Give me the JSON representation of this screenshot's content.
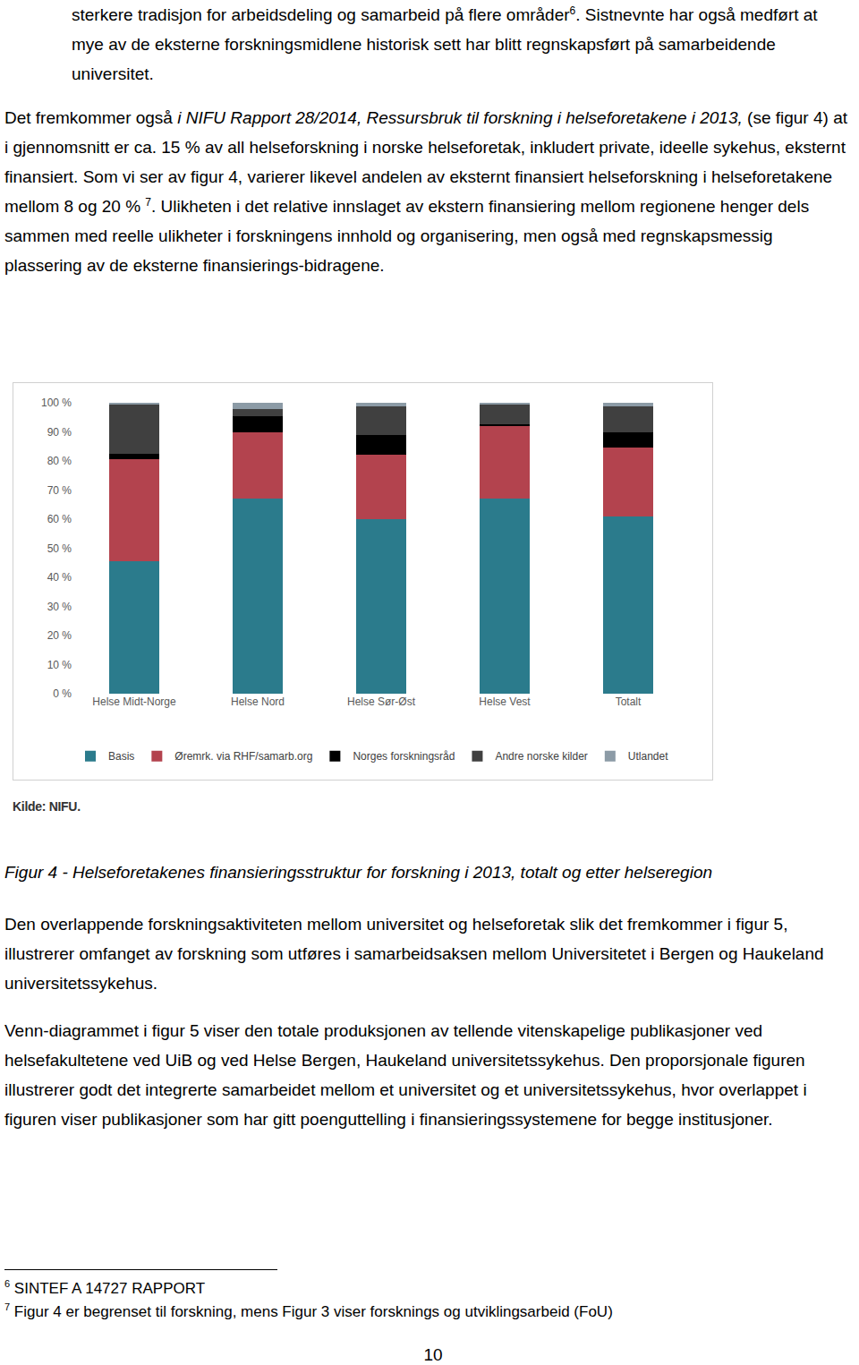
{
  "paragraphs": [
    [
      {
        "text": "sterkere tradisjon for arbeidsdeling og samarbeid på flere områder"
      },
      {
        "sup": "6"
      },
      {
        "text": ". Sistnevnte har også medført at mye av de eksterne forskningsmidlene historisk sett har blitt regnskapsført på samarbeidende universitet."
      }
    ],
    [
      {
        "text": "Det fremkommer også "
      },
      {
        "text": "i NIFU Rapport 28/2014, Ressursbruk til forskning i helseforetakene i 2013,",
        "italic": true
      },
      {
        "text": " (se figur 4) at i gjennomsnitt er ca. 15 % av all helseforskning i norske helseforetak, inkludert private, ideelle sykehus, eksternt finansiert. Som vi ser av figur 4, varierer likevel andelen av eksternt finansiert helseforskning i helseforetakene mellom 8 og 20 % "
      },
      {
        "sup": "7"
      },
      {
        "text": ". Ulikheten i det relative innslaget av ekstern finansiering mellom regionene henger dels sammen med reelle ulikheter i forskningens innhold og organisering, men også med regnskapsmessig plassering av de eksterne finansierings-bidragene."
      }
    ],
    [
      {
        "text": "Den overlappende forskningsaktiviteten mellom universitet og helseforetak slik det fremkommer i figur 5, illustrerer omfanget av forskning som utføres i samarbeidsaksen mellom Universitetet i Bergen og Haukeland universitetssykehus."
      }
    ],
    [
      {
        "text": "Venn-diagrammet i figur 5 viser den totale produksjonen av tellende vitenskapelige publikasjoner ved helsefakultetene ved UiB og ved Helse Bergen, Haukeland universitetssykehus. Den proporsjonale figuren illustrerer godt det integrerte samarbeidet mellom et universitet og et universitetssykehus, hvor overlappet i figuren viser publikasjoner som har gitt poenguttelling i finansieringssystemene for begge institusjoner."
      }
    ]
  ],
  "chart_data": {
    "type": "bar",
    "stacked": true,
    "grid": false,
    "legend": "bottom",
    "categories": [
      "Helse Midt-Norge",
      "Helse Nord",
      "Helse Sør-Øst",
      "Helse Vest",
      "Totalt"
    ],
    "series": [
      {
        "name": "Basis",
        "color": "#2b7b8c",
        "values": [
          45.5,
          67,
          60,
          67,
          61
        ]
      },
      {
        "name": "Øremrk. via RHF/samarb.org",
        "color": "#b3434e",
        "values": [
          35,
          23,
          22.3,
          25,
          23.5
        ]
      },
      {
        "name": "Norges forskningsråd",
        "color": "#000000",
        "values": [
          2,
          5.5,
          6.7,
          0.5,
          5.5
        ]
      },
      {
        "name": "Andre norske kilder",
        "color": "#404040",
        "values": [
          17,
          2.5,
          9.8,
          7,
          8.8
        ]
      },
      {
        "name": "Utlandet",
        "color": "#8c9ba6",
        "values": [
          0.5,
          2,
          1.2,
          0.5,
          1.2
        ]
      }
    ],
    "ylim": [
      0,
      100
    ],
    "yticks": [
      {
        "value": 0,
        "label": "0 %"
      },
      {
        "value": 10,
        "label": "10 %"
      },
      {
        "value": 20,
        "label": "20 %"
      },
      {
        "value": 30,
        "label": "30 %"
      },
      {
        "value": 40,
        "label": "40 %"
      },
      {
        "value": 50,
        "label": "50 %"
      },
      {
        "value": 60,
        "label": "60 %"
      },
      {
        "value": 70,
        "label": "70 %"
      },
      {
        "value": 80,
        "label": "80 %"
      },
      {
        "value": 90,
        "label": "90 %"
      },
      {
        "value": 100,
        "label": "100 %"
      }
    ]
  },
  "source": "Kilde: NIFU.",
  "caption": "Figur 4 - Helseforetakenes finansieringsstruktur for forskning i 2013, totalt og etter helseregion",
  "footnotes": [
    {
      "mark": "6",
      "text": "SINTEF A 14727 RAPPORT"
    },
    {
      "mark": "7",
      "text": "Figur 4 er begrenset til forskning, mens Figur 3 viser forsknings og utviklingsarbeid (FoU)"
    }
  ],
  "page_number": "10"
}
